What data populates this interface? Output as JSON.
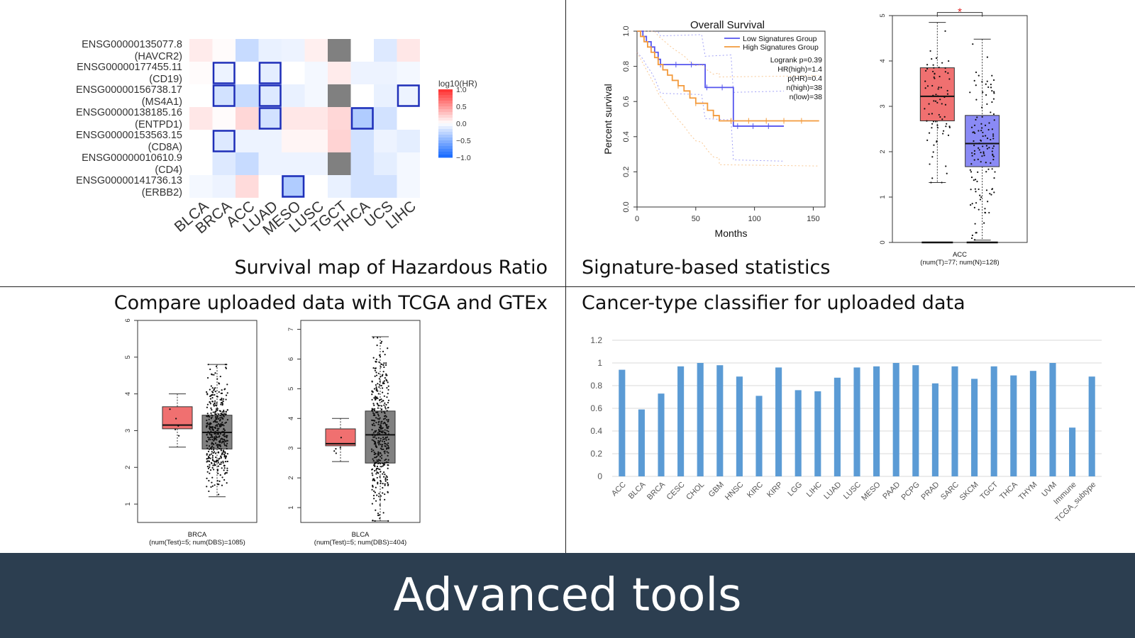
{
  "panels": {
    "top_left_caption": "Survival map of Hazardous Ratio",
    "top_right_caption": "Signature-based statistics",
    "bottom_left_caption": "Compare uploaded data with TCGA and GTEx",
    "bottom_right_caption": "Cancer-type classifier for uploaded data"
  },
  "footer": {
    "title": "Advanced tools"
  },
  "colors": {
    "footer_bg": "#2c3e50",
    "highlight": "#1f2fb8",
    "tumor_box": "#f07070",
    "normal_box": "#8a8af5",
    "gray_box": "#808080",
    "bar": "#5b9bd5"
  },
  "chart_data": [
    {
      "type": "heatmap",
      "rows": [
        {
          "id": "ENSG00000135077.8",
          "gene": "(HAVCR2)"
        },
        {
          "id": "ENSG00000177455.11",
          "gene": "(CD19)"
        },
        {
          "id": "ENSG00000156738.17",
          "gene": "(MS4A1)"
        },
        {
          "id": "ENSG00000138185.16",
          "gene": "(ENTPD1)"
        },
        {
          "id": "ENSG00000153563.15",
          "gene": "(CD8A)"
        },
        {
          "id": "ENSG00000010610.9",
          "gene": "(CD4)"
        },
        {
          "id": "ENSG00000141736.13",
          "gene": "(ERBB2)"
        }
      ],
      "columns": [
        "BLCA",
        "BRCA",
        "ACC",
        "LUAD",
        "MESO",
        "LUSC",
        "TGCT",
        "THCA",
        "UCS",
        "LIHC"
      ],
      "values": [
        [
          0.1,
          0.02,
          -0.25,
          -0.1,
          -0.08,
          0.08,
          null,
          0.0,
          -0.15,
          0.12
        ],
        [
          0.02,
          -0.08,
          0.0,
          -0.12,
          0.0,
          -0.05,
          0.1,
          -0.08,
          -0.08,
          -0.05
        ],
        [
          0.0,
          -0.2,
          -0.25,
          -0.15,
          -0.1,
          -0.05,
          null,
          0.0,
          -0.1,
          -0.08
        ],
        [
          0.12,
          0.02,
          0.2,
          -0.2,
          0.12,
          0.12,
          0.2,
          -0.35,
          -0.2,
          0.0
        ],
        [
          0.0,
          -0.15,
          -0.08,
          -0.08,
          0.05,
          0.05,
          0.22,
          -0.2,
          -0.08,
          -0.12
        ],
        [
          0.0,
          -0.15,
          -0.25,
          -0.08,
          -0.08,
          -0.08,
          null,
          -0.2,
          -0.12,
          -0.05
        ],
        [
          -0.05,
          -0.08,
          0.18,
          0.0,
          -0.35,
          0.0,
          -0.1,
          -0.2,
          -0.2,
          -0.05
        ]
      ],
      "highlighted": [
        [
          1,
          1
        ],
        [
          1,
          3
        ],
        [
          2,
          1
        ],
        [
          2,
          3
        ],
        [
          2,
          9
        ],
        [
          3,
          3
        ],
        [
          3,
          7
        ],
        [
          4,
          1
        ],
        [
          6,
          4
        ]
      ],
      "legend": {
        "title": "log10(HR)",
        "ticks": [
          "1.0",
          "0.5",
          "0.0",
          "−0.5",
          "−1.0"
        ],
        "values": [
          1,
          0.5,
          0,
          -0.5,
          -1
        ]
      }
    },
    {
      "type": "line",
      "title": "Overall Survival",
      "xlabel": "Months",
      "ylabel": "Percent survival",
      "xlim": [
        0,
        160
      ],
      "ylim": [
        0,
        1
      ],
      "xticks": [
        "0",
        "50",
        "100",
        "150"
      ],
      "yticks": [
        "0.0",
        "0.2",
        "0.4",
        "0.6",
        "0.8",
        "1.0"
      ],
      "series": [
        {
          "name": "Low Signatures Group",
          "color": "#5555ee",
          "x": [
            0,
            5,
            8,
            12,
            15,
            18,
            20,
            55,
            58,
            80,
            82,
            125
          ],
          "y": [
            1.0,
            0.97,
            0.94,
            0.91,
            0.88,
            0.84,
            0.81,
            0.81,
            0.68,
            0.68,
            0.46,
            0.46
          ]
        },
        {
          "name": "High Signatures Group",
          "color": "#f39a3c",
          "x": [
            0,
            3,
            6,
            9,
            12,
            15,
            18,
            22,
            26,
            30,
            35,
            40,
            45,
            50,
            55,
            60,
            65,
            70,
            70,
            155
          ],
          "y": [
            1.0,
            0.97,
            0.94,
            0.91,
            0.88,
            0.85,
            0.81,
            0.78,
            0.75,
            0.72,
            0.69,
            0.66,
            0.62,
            0.59,
            0.59,
            0.55,
            0.52,
            0.52,
            0.49,
            0.49
          ]
        }
      ],
      "stats": [
        "Logrank p=0.39",
        "HR(high)=1.4",
        "p(HR)=0.4",
        "n(high)=38",
        "n(low)=38"
      ]
    },
    {
      "type": "box",
      "category": "ACC",
      "sublabel": "(num(T)=77; num(N)=128)",
      "ylim": [
        0,
        5
      ],
      "yticks": [
        "0",
        "1",
        "2",
        "3",
        "4",
        "5"
      ],
      "significance": "*",
      "boxes": [
        {
          "name": "T",
          "color": "#f07070",
          "min": 1.32,
          "q1": 2.68,
          "median": 3.22,
          "q3": 3.85,
          "max": 4.85,
          "n": 77
        },
        {
          "name": "N",
          "color": "#8a8af5",
          "min": 0.05,
          "q1": 1.67,
          "median": 2.18,
          "q3": 2.8,
          "max": 4.48,
          "n": 128
        }
      ]
    },
    {
      "type": "box",
      "category": "BRCA",
      "sublabel": "(num(Test)=5; num(DBS)=1085)",
      "ylim": [
        0.5,
        6
      ],
      "yticks": [
        "1",
        "2",
        "3",
        "4",
        "5",
        "6"
      ],
      "boxes": [
        {
          "name": "Test",
          "color": "#f07070",
          "min": 2.55,
          "q1": 3.05,
          "median": 3.15,
          "q3": 3.65,
          "max": 4.0,
          "n": 5
        },
        {
          "name": "DBS",
          "color": "#808080",
          "min": 1.2,
          "q1": 2.5,
          "median": 2.95,
          "q3": 3.42,
          "max": 4.8,
          "n": 1085
        }
      ]
    },
    {
      "type": "box",
      "category": "BLCA",
      "sublabel": "(num(Test)=5; num(DBS)=404)",
      "ylim": [
        0.5,
        7.3
      ],
      "yticks": [
        "1",
        "2",
        "3",
        "4",
        "5",
        "6",
        "7"
      ],
      "boxes": [
        {
          "name": "Test",
          "color": "#f07070",
          "min": 2.55,
          "q1": 3.08,
          "median": 3.15,
          "q3": 3.65,
          "max": 4.0,
          "n": 5
        },
        {
          "name": "DBS",
          "color": "#808080",
          "min": 0.55,
          "q1": 2.5,
          "median": 3.45,
          "q3": 4.25,
          "max": 6.75,
          "n": 404
        }
      ]
    },
    {
      "type": "bar",
      "categories": [
        "ACC",
        "BLCA",
        "BRCA",
        "CESC",
        "CHOL",
        "GBM",
        "HNSC",
        "KIRC",
        "KIRP",
        "LGG",
        "LIHC",
        "LUAD",
        "LUSC",
        "MESO",
        "PAAD",
        "PCPG",
        "PRAD",
        "SARC",
        "SKCM",
        "TGCT",
        "THCA",
        "THYM",
        "UVM",
        "Immune",
        "TCGA_subtype"
      ],
      "values": [
        0.94,
        0.59,
        0.73,
        0.97,
        1.0,
        0.98,
        0.88,
        0.71,
        0.96,
        0.76,
        0.75,
        0.87,
        0.96,
        0.97,
        1.0,
        0.98,
        0.82,
        0.97,
        0.86,
        0.97,
        0.89,
        0.93,
        1.0,
        0.43,
        0.88
      ],
      "ylim": [
        0,
        1.2
      ],
      "yticks": [
        "0",
        "0.2",
        "0.4",
        "0.6",
        "0.8",
        "1",
        "1.2"
      ]
    }
  ]
}
